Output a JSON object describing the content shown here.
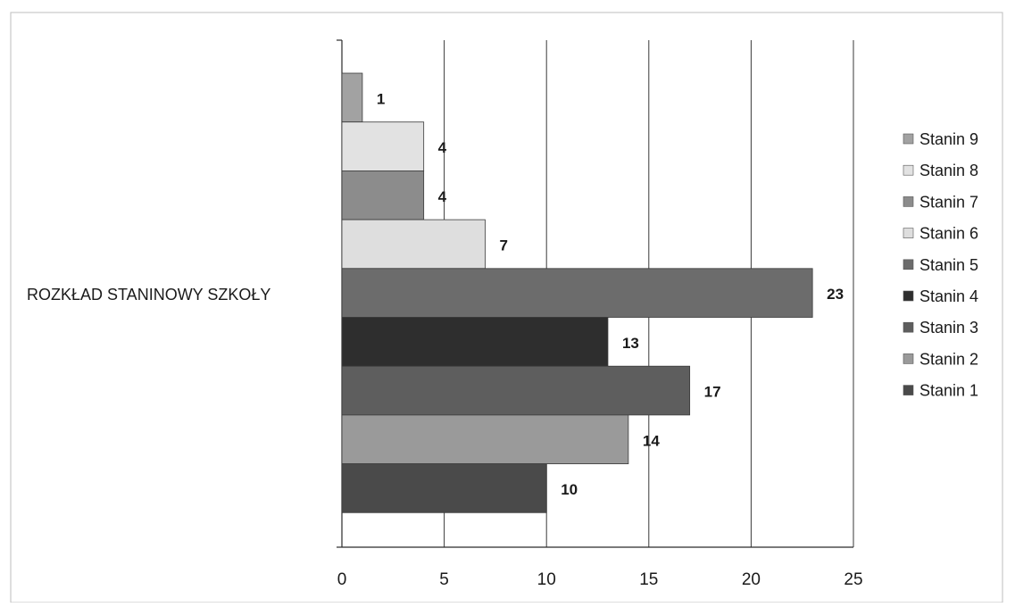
{
  "chart_data": {
    "type": "bar",
    "orientation": "horizontal",
    "category": "ROZKŁAD STANINOWY SZKOŁY",
    "xlim": [
      0,
      25
    ],
    "x_ticks": [
      0,
      5,
      10,
      15,
      20,
      25
    ],
    "grid": true,
    "legend_position": "right",
    "series": [
      {
        "name": "Stanin 1",
        "value": 10,
        "color": "#4a4a4a"
      },
      {
        "name": "Stanin 2",
        "value": 14,
        "color": "#9a9a9a"
      },
      {
        "name": "Stanin 3",
        "value": 17,
        "color": "#5e5e5e"
      },
      {
        "name": "Stanin 4",
        "value": 13,
        "color": "#2e2e2e"
      },
      {
        "name": "Stanin 5",
        "value": 23,
        "color": "#6c6c6c"
      },
      {
        "name": "Stanin 6",
        "value": 7,
        "color": "#dedede"
      },
      {
        "name": "Stanin 7",
        "value": 4,
        "color": "#8c8c8c"
      },
      {
        "name": "Stanin 8",
        "value": 4,
        "color": "#e2e2e2"
      },
      {
        "name": "Stanin 9",
        "value": 1,
        "color": "#a2a2a2"
      }
    ]
  }
}
